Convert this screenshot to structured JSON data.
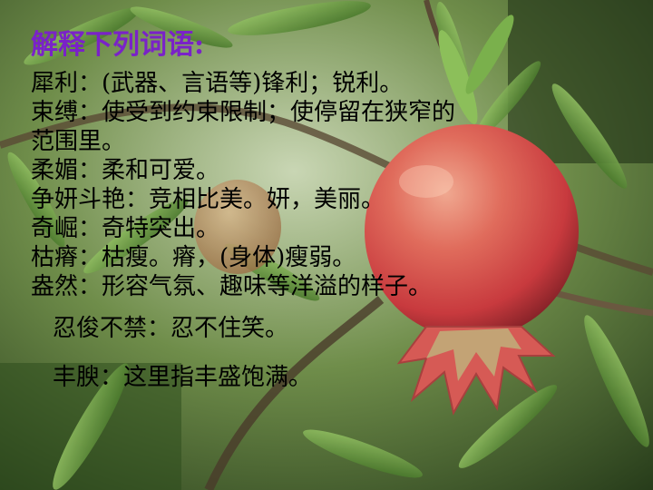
{
  "slide": {
    "title": "解释下列词语:",
    "lines": [
      "犀利：(武器、言语等)锋利；锐利。",
      "束缚：使受到约束限制；使停留在狭窄的",
      "范围里。",
      "柔媚：柔和可爱。",
      "争妍斗艳：竞相比美。妍，美丽。",
      "奇崛：奇特突出。",
      "枯瘠：枯瘦。瘠，(身体)瘦弱。",
      "盎然：形容气氛、趣味等洋溢的样子。",
      "忍俊不禁：忍不住笑。",
      "丰腴：这里指丰盛饱满。"
    ]
  },
  "colors": {
    "title": "#7a22c8",
    "text": "#000000"
  },
  "background": {
    "subject": "pomegranate-on-branch-photo"
  }
}
